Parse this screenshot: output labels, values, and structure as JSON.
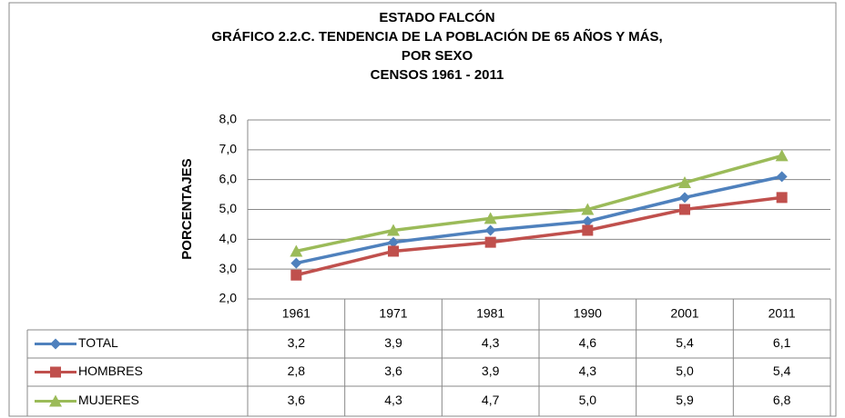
{
  "chart_data": {
    "type": "line",
    "title": [
      "ESTADO FALCÓN",
      "GRÁFICO 2.2.C. TENDENCIA  DE LA POBLACIÓN DE 65  AÑOS Y MÁS,",
      "POR SEXO",
      "CENSOS 1961  - 2011"
    ],
    "y_label": "PORCENTAJES",
    "categories": [
      "1961",
      "1971",
      "1981",
      "1990",
      "2001",
      "2011"
    ],
    "series": [
      {
        "name": "TOTAL",
        "color": "#4f81bd",
        "marker": "diamond",
        "values": [
          3.2,
          3.9,
          4.3,
          4.6,
          5.4,
          6.1
        ],
        "value_labels": [
          "3,2",
          "3,9",
          "4,3",
          "4,6",
          "5,4",
          "6,1"
        ]
      },
      {
        "name": "HOMBRES",
        "color": "#c0504d",
        "marker": "square",
        "values": [
          2.8,
          3.6,
          3.9,
          4.3,
          5.0,
          5.4
        ],
        "value_labels": [
          "2,8",
          "3,6",
          "3,9",
          "4,3",
          "5,0",
          "5,4"
        ]
      },
      {
        "name": "MUJERES",
        "color": "#9bbb59",
        "marker": "triangle",
        "values": [
          3.6,
          4.3,
          4.7,
          5.0,
          5.9,
          6.8
        ],
        "value_labels": [
          "3,6",
          "4,3",
          "4,7",
          "5,0",
          "5,9",
          "6,8"
        ]
      }
    ],
    "ylim": [
      2,
      8
    ],
    "yticks": [
      {
        "value": 2,
        "label": "2,0"
      },
      {
        "value": 3,
        "label": "3,0"
      },
      {
        "value": 4,
        "label": "4,0"
      },
      {
        "value": 5,
        "label": "5,0"
      },
      {
        "value": 6,
        "label": "6,0"
      },
      {
        "value": 7,
        "label": "7,0"
      },
      {
        "value": 8,
        "label": "8,0"
      }
    ],
    "grid": true
  }
}
